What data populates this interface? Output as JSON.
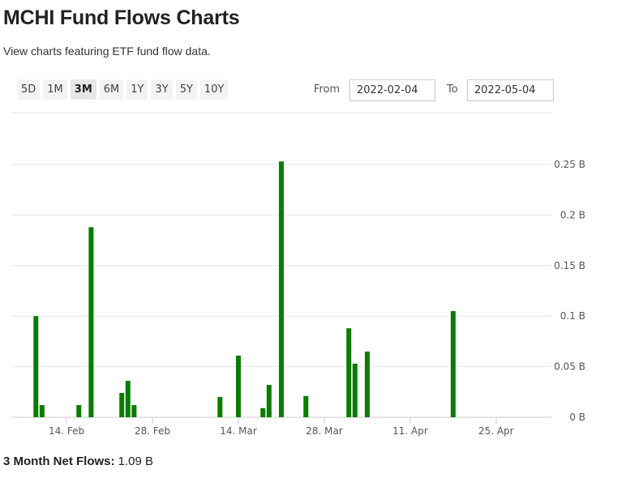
{
  "header": {
    "title": "MCHI Fund Flows Charts",
    "subtitle": "View charts featuring ETF fund flow data."
  },
  "range_buttons": [
    {
      "label": "5D",
      "active": false
    },
    {
      "label": "1M",
      "active": false
    },
    {
      "label": "3M",
      "active": true
    },
    {
      "label": "6M",
      "active": false
    },
    {
      "label": "1Y",
      "active": false
    },
    {
      "label": "3Y",
      "active": false
    },
    {
      "label": "5Y",
      "active": false
    },
    {
      "label": "10Y",
      "active": false
    }
  ],
  "date_range": {
    "from_label": "From",
    "from_value": "2022-02-04",
    "to_label": "To",
    "to_value": "2022-05-04"
  },
  "colors": {
    "bar": "#0a7d00",
    "grid": "#e6e6e6",
    "axis": "#cccccc"
  },
  "chart_data": {
    "type": "bar",
    "x_axis_type": "date",
    "y_unit": "B",
    "ylim": [
      0,
      0.25
    ],
    "grid": true,
    "y_ticks": [
      {
        "value": 0,
        "label": "0 B"
      },
      {
        "value": 0.05,
        "label": "0.05 B"
      },
      {
        "value": 0.1,
        "label": "0.1 B"
      },
      {
        "value": 0.15,
        "label": "0.15 B"
      },
      {
        "value": 0.2,
        "label": "0.2 B"
      },
      {
        "value": 0.25,
        "label": "0.25 B"
      }
    ],
    "x_ticks": [
      {
        "date": "2022-02-14",
        "label": "14. Feb"
      },
      {
        "date": "2022-02-28",
        "label": "28. Feb"
      },
      {
        "date": "2022-03-14",
        "label": "14. Mar"
      },
      {
        "date": "2022-03-28",
        "label": "28. Mar"
      },
      {
        "date": "2022-04-11",
        "label": "11. Apr"
      },
      {
        "date": "2022-04-25",
        "label": "25. Apr"
      }
    ],
    "x_range": [
      "2022-02-05",
      "2022-05-04"
    ],
    "points": [
      {
        "date": "2022-02-09",
        "value": 0.1
      },
      {
        "date": "2022-02-10",
        "value": 0.012
      },
      {
        "date": "2022-02-16",
        "value": 0.012
      },
      {
        "date": "2022-02-18",
        "value": 0.188
      },
      {
        "date": "2022-02-23",
        "value": 0.024
      },
      {
        "date": "2022-02-24",
        "value": 0.036
      },
      {
        "date": "2022-02-25",
        "value": 0.012
      },
      {
        "date": "2022-03-11",
        "value": 0.02
      },
      {
        "date": "2022-03-14",
        "value": 0.061
      },
      {
        "date": "2022-03-18",
        "value": 0.009
      },
      {
        "date": "2022-03-19",
        "value": 0.032
      },
      {
        "date": "2022-03-21",
        "value": 0.253
      },
      {
        "date": "2022-03-25",
        "value": 0.021
      },
      {
        "date": "2022-04-01",
        "value": 0.088
      },
      {
        "date": "2022-04-02",
        "value": 0.053
      },
      {
        "date": "2022-04-04",
        "value": 0.065
      },
      {
        "date": "2022-04-18",
        "value": 0.105
      }
    ]
  },
  "footer": {
    "net_flows_label": "3 Month Net Flows:",
    "net_flows_value": "1.09 B"
  }
}
